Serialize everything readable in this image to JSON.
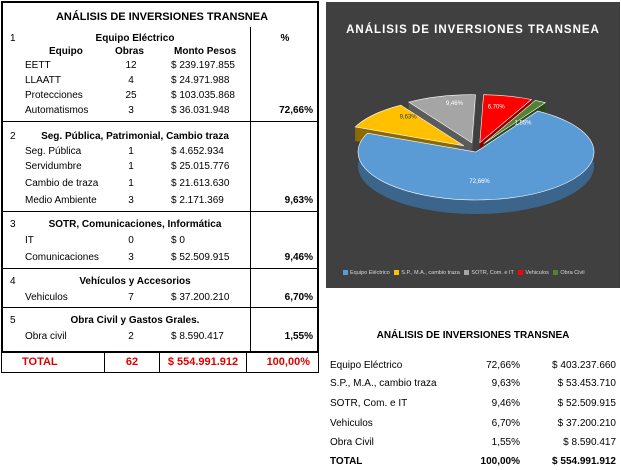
{
  "left_table": {
    "title": "ANÁLISIS DE INVERSIONES TRANSNEA",
    "pct_header": "%",
    "col_headers": {
      "equipo": "Equipo",
      "obras": "Obras",
      "monto": "Monto Pesos"
    },
    "sections": [
      {
        "num": "1",
        "title": "Equipo Eléctrico",
        "pct": "72,66%",
        "rows": [
          {
            "name": "EETT",
            "obras": "12",
            "monto": "$ 239.197.855"
          },
          {
            "name": "LLAATT",
            "obras": "4",
            "monto": "$ 24.971.988"
          },
          {
            "name": "Protecciones",
            "obras": "25",
            "monto": "$ 103.035.868"
          },
          {
            "name": "Automatismos",
            "obras": "3",
            "monto": "$ 36.031.948"
          }
        ]
      },
      {
        "num": "2",
        "title": "Seg. Pública, Patrimonial, Cambio traza",
        "pct": "9,63%",
        "rows": [
          {
            "name": "Seg. Pública",
            "obras": "1",
            "monto": "$ 4.652.934"
          },
          {
            "name": "Servidumbre",
            "obras": "1",
            "monto": "$ 25.015.776"
          },
          {
            "name": "Cambio de traza",
            "obras": "1",
            "monto": "$ 21.613.630"
          },
          {
            "name": "Medio Ambiente",
            "obras": "3",
            "monto": "$ 2.171.369"
          }
        ]
      },
      {
        "num": "3",
        "title": "SOTR, Comunicaciones, Informática",
        "pct": "9,46%",
        "rows": [
          {
            "name": "IT",
            "obras": "0",
            "monto": "$ 0"
          },
          {
            "name": "Comunicaciones",
            "obras": "3",
            "monto": "$ 52.509.915"
          }
        ]
      },
      {
        "num": "4",
        "title": "Vehículos y Accesorios",
        "pct": "6,70%",
        "rows": [
          {
            "name": "Vehiculos",
            "obras": "7",
            "monto": "$ 37.200.210"
          }
        ]
      },
      {
        "num": "5",
        "title": "Obra Civil y Gastos Grales.",
        "pct": "1,55%",
        "rows": [
          {
            "name": "Obra civil",
            "obras": "2",
            "monto": "$ 8.590.417"
          }
        ]
      }
    ],
    "total": {
      "label": "TOTAL",
      "obras": "62",
      "monto": "$ 554.991.912",
      "pct": "100,00%"
    }
  },
  "chart_data": {
    "type": "pie",
    "title": "ANÁLISIS DE INVERSIONES TRANSNEA",
    "slices": [
      {
        "label": "Equipo Eléctrico",
        "value": 72.66,
        "data_label": "72,66%",
        "color": "#5b9bd5"
      },
      {
        "label": "S.P., M.A., cambio traza",
        "value": 9.63,
        "data_label": "9,63%",
        "color": "#ffc000"
      },
      {
        "label": "SOTR, Com. e IT",
        "value": 9.46,
        "data_label": "9,46%",
        "color": "#a5a5a5"
      },
      {
        "label": "Vehiculos",
        "value": 6.7,
        "data_label": "6,70%",
        "color": "#ff0000"
      },
      {
        "label": "Obra Civil",
        "value": 1.55,
        "data_label": "1,55%",
        "color": "#548235"
      }
    ],
    "legend_position": "bottom",
    "style": "3d-exploded"
  },
  "summary": {
    "title": "ANÁLISIS DE INVERSIONES TRANSNEA",
    "rows": [
      {
        "label": "Equipo Eléctrico",
        "pct": "72,66%",
        "value": "$ 403.237.660"
      },
      {
        "label": "S.P., M.A., cambio traza",
        "pct": "9,63%",
        "value": "$ 53.453.710"
      },
      {
        "label": "SOTR, Com. e IT",
        "pct": "9,46%",
        "value": "$ 52.509.915"
      },
      {
        "label": "Vehiculos",
        "pct": "6,70%",
        "value": "$ 37.200.210"
      },
      {
        "label": "Obra Civil",
        "pct": "1,55%",
        "value": "$ 8.590.417"
      },
      {
        "label": "TOTAL",
        "pct": "100,00%",
        "value": "$ 554.991.912"
      }
    ]
  }
}
